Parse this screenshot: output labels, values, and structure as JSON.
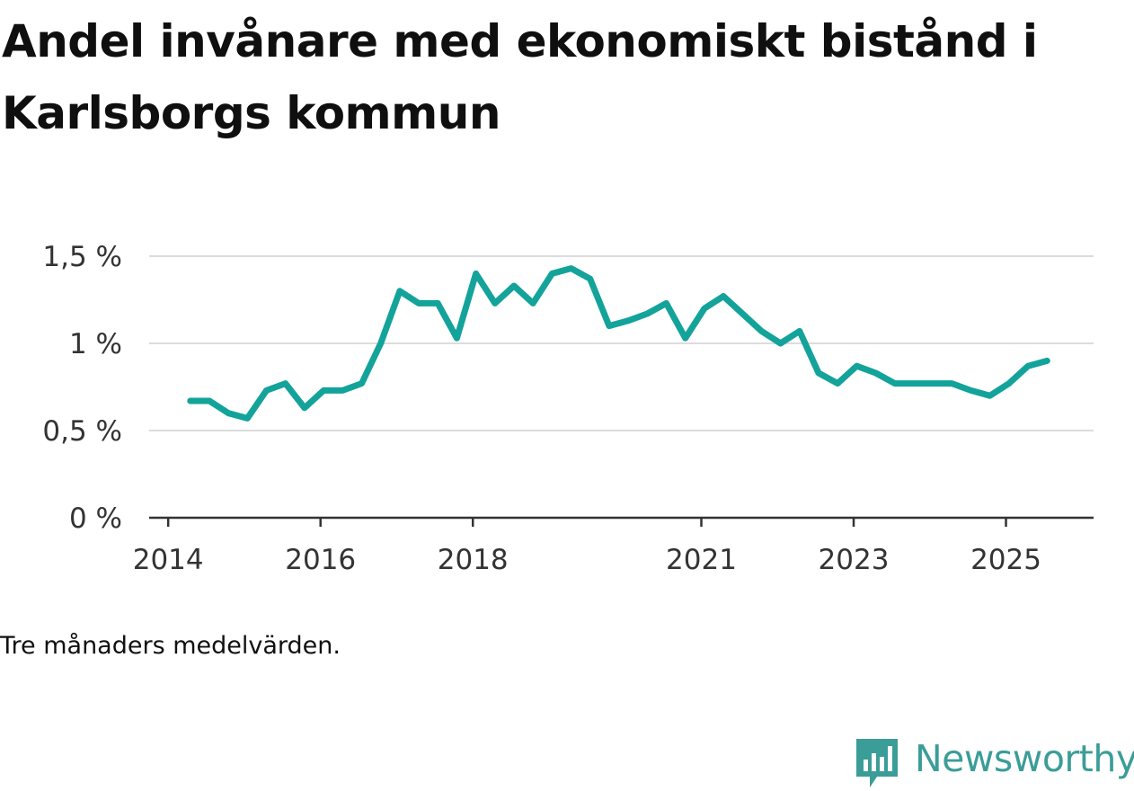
{
  "title": "Andel invånare med ekonomiskt bistånd i Karlsborgs kommun",
  "note": "Tre månaders medelvärden.",
  "brand": {
    "name": "Newsworthy",
    "icon": "newsworthy-logo-icon",
    "color": "#3b9d97"
  },
  "chart_data": {
    "type": "line",
    "title": "Andel invånare med ekonomiskt bistånd i Karlsborgs kommun",
    "xlabel": "",
    "ylabel": "",
    "ylim": [
      0,
      1.5
    ],
    "y_ticks": [
      {
        "value": 0,
        "label": "0 %"
      },
      {
        "value": 0.5,
        "label": "0,5 %"
      },
      {
        "value": 1,
        "label": "1 %"
      },
      {
        "value": 1.5,
        "label": "1,5 %"
      }
    ],
    "x_ticks": [
      {
        "value": 2014,
        "label": "2014"
      },
      {
        "value": 2016,
        "label": "2016"
      },
      {
        "value": 2018,
        "label": "2018"
      },
      {
        "value": 2021,
        "label": "2021"
      },
      {
        "value": 2023,
        "label": "2023"
      },
      {
        "value": 2025,
        "label": "2025"
      }
    ],
    "xlim": [
      2013.75,
      2026.15
    ],
    "grid": true,
    "line_color": "#13a39a",
    "series": [
      {
        "name": "Andel invånare med ekonomiskt bistånd",
        "x": [
          2014.29,
          2014.54,
          2014.79,
          2015.04,
          2015.29,
          2015.54,
          2015.79,
          2016.04,
          2016.29,
          2016.54,
          2016.79,
          2017.04,
          2017.29,
          2017.54,
          2017.79,
          2018.04,
          2018.29,
          2018.54,
          2018.79,
          2019.04,
          2019.29,
          2019.54,
          2019.79,
          2020.04,
          2020.29,
          2020.54,
          2020.79,
          2021.04,
          2021.29,
          2021.54,
          2021.79,
          2022.04,
          2022.29,
          2022.54,
          2022.79,
          2023.04,
          2023.29,
          2023.54,
          2023.79,
          2024.04,
          2024.29,
          2024.54,
          2024.79,
          2025.04,
          2025.29,
          2025.54
        ],
        "values": [
          0.67,
          0.67,
          0.6,
          0.57,
          0.73,
          0.77,
          0.63,
          0.73,
          0.73,
          0.77,
          1.0,
          1.3,
          1.23,
          1.23,
          1.03,
          1.4,
          1.23,
          1.33,
          1.23,
          1.4,
          1.43,
          1.37,
          1.1,
          1.13,
          1.17,
          1.23,
          1.03,
          1.2,
          1.27,
          1.17,
          1.07,
          1.0,
          1.07,
          0.83,
          0.77,
          0.87,
          0.83,
          0.77,
          0.77,
          0.77,
          0.77,
          0.73,
          0.7,
          0.77,
          0.87,
          0.9
        ]
      }
    ]
  }
}
